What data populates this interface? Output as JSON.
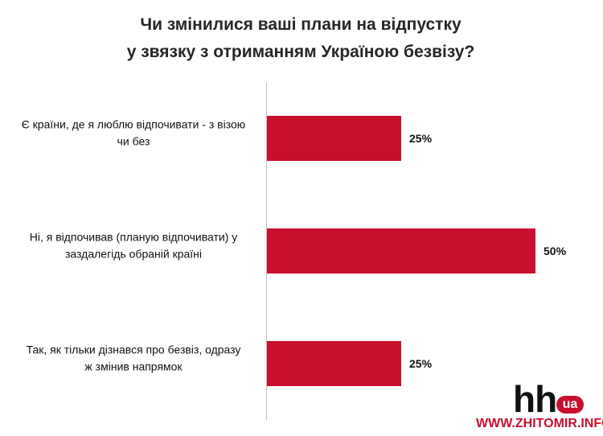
{
  "chart_data": {
    "type": "bar",
    "orientation": "horizontal",
    "title": "Чи змінилися ваші плани на відпустку у звязку з отриманням Україною безвізу?",
    "title_lines": [
      "Чи змінилися ваші плани на відпустку",
      "у звязку з отриманням Україною безвізу?"
    ],
    "categories": [
      "Є країни, де я люблю відпочивати - з візою чи без",
      "Ні, я відпочивав (планую відпочивати) у заздалегідь обраній країні",
      "Так, як тільки дізнався про безвіз, одразу ж змінив напрямок"
    ],
    "category_lines": [
      [
        "Є країни, де я люблю відпочивати - з візою",
        "чи без"
      ],
      [
        "Ні, я відпочивав (планую відпочивати) у",
        "заздалегідь обраній країні"
      ],
      [
        "Так, як тільки дізнався про безвіз, одразу",
        "ж змінив напрямок"
      ]
    ],
    "values": [
      25,
      50,
      25
    ],
    "value_labels": [
      "25%",
      "50%",
      "25%"
    ],
    "unit": "%",
    "xlim": [
      0,
      50
    ],
    "grid": false,
    "bar_color": "#c8102e"
  },
  "logo": {
    "hh": "hh",
    "ua": "ua",
    "site": "WWW.ZHITOMIR.INFO"
  }
}
